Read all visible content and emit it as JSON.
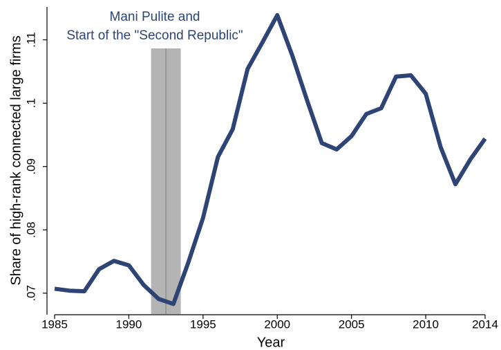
{
  "chart_data": {
    "type": "line",
    "x_label": "Year",
    "y_label": "Share of high-rank connected large firms",
    "annotation": [
      "Mani Pulite and",
      "Start of the \"Second Republic\""
    ],
    "annotation_color": "#2d4475",
    "shaded_range": [
      1991.5,
      1993.5
    ],
    "shade_color": "#b4b4b4",
    "vline": 1992.5,
    "vline_color": "#999999",
    "x": [
      1985,
      1986,
      1987,
      1988,
      1989,
      1990,
      1991,
      1992,
      1993,
      1994,
      1995,
      1996,
      1997,
      1998,
      1999,
      2000,
      2001,
      2002,
      2003,
      2004,
      2005,
      2006,
      2007,
      2008,
      2009,
      2010,
      2011,
      2012,
      2013,
      2014
    ],
    "series": [
      {
        "color": "#2d4475",
        "values": [
          0.0707,
          0.0704,
          0.0703,
          0.0738,
          0.0751,
          0.0744,
          0.0713,
          0.0691,
          0.0683,
          0.0748,
          0.0819,
          0.0915,
          0.0959,
          0.1054,
          0.1096,
          0.1139,
          0.1076,
          0.1005,
          0.0937,
          0.0927,
          0.0948,
          0.0983,
          0.0992,
          0.1042,
          0.1044,
          0.1015,
          0.0931,
          0.0872,
          0.0911,
          0.0944
        ]
      }
    ],
    "xlim": [
      1985,
      2014
    ],
    "xticks": [
      1985,
      1990,
      1995,
      2000,
      2005,
      2010,
      2014
    ],
    "ylim": [
      0.0666,
      0.1152
    ],
    "yticks": [
      {
        "value": 0.07,
        "label": ".07"
      },
      {
        "value": 0.08,
        "label": ".08"
      },
      {
        "value": 0.09,
        "label": ".09"
      },
      {
        "value": 0.1,
        "label": ".1"
      },
      {
        "value": 0.11,
        "label": ".11"
      }
    ]
  }
}
